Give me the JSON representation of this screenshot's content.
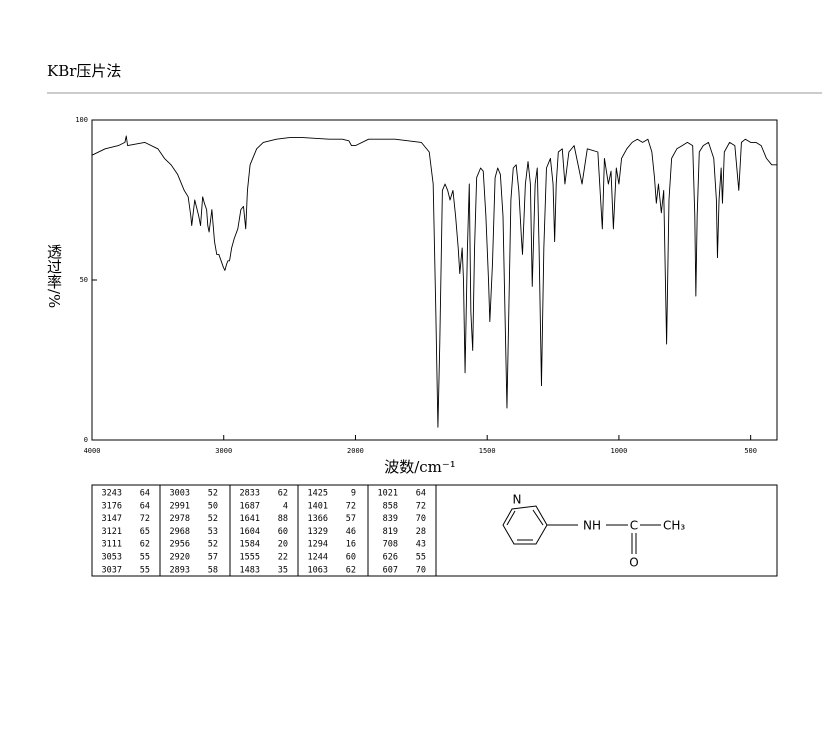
{
  "header": {
    "title": "KBr压片法"
  },
  "chart_data": {
    "type": "line",
    "x_label": "波数/cm⁻¹",
    "y_label": "透过率/%",
    "xlim": [
      4000,
      400
    ],
    "xticks": [
      4000,
      3000,
      2000,
      1500,
      1000,
      500
    ],
    "ylim": [
      0,
      100
    ],
    "yticks": [
      0,
      50,
      100
    ],
    "color": "#000000",
    "x": [
      4000,
      3900,
      3800,
      3750,
      3740,
      3730,
      3600,
      3500,
      3450,
      3400,
      3350,
      3300,
      3270,
      3250,
      3243,
      3220,
      3190,
      3176,
      3160,
      3147,
      3130,
      3121,
      3111,
      3090,
      3070,
      3053,
      3037,
      3020,
      3003,
      2991,
      2978,
      2968,
      2956,
      2940,
      2920,
      2893,
      2870,
      2850,
      2833,
      2820,
      2800,
      2750,
      2700,
      2600,
      2500,
      2400,
      2200,
      2100,
      2050,
      2030,
      2000,
      1950,
      1850,
      1800,
      1750,
      1720,
      1705,
      1695,
      1687,
      1680,
      1670,
      1660,
      1650,
      1641,
      1630,
      1620,
      1610,
      1604,
      1595,
      1590,
      1584,
      1575,
      1568,
      1562,
      1555,
      1548,
      1540,
      1525,
      1515,
      1505,
      1495,
      1490,
      1480,
      1470,
      1460,
      1450,
      1440,
      1430,
      1425,
      1418,
      1410,
      1401,
      1390,
      1380,
      1370,
      1366,
      1355,
      1345,
      1336,
      1329,
      1318,
      1310,
      1303,
      1294,
      1285,
      1275,
      1260,
      1250,
      1244,
      1238,
      1230,
      1215,
      1205,
      1190,
      1170,
      1140,
      1120,
      1080,
      1063,
      1055,
      1040,
      1030,
      1021,
      1010,
      1000,
      990,
      970,
      950,
      930,
      910,
      890,
      875,
      865,
      858,
      850,
      839,
      830,
      819,
      810,
      800,
      780,
      760,
      740,
      720,
      712,
      708,
      703,
      695,
      680,
      660,
      640,
      630,
      626,
      620,
      612,
      607,
      600,
      580,
      560,
      545,
      535,
      520,
      500,
      480,
      460,
      440,
      420,
      400
    ],
    "values": [
      89,
      91,
      92,
      93,
      95,
      92,
      93,
      91,
      88,
      86,
      83,
      78,
      76,
      70,
      67,
      75,
      70,
      67,
      76,
      74,
      72,
      67,
      65,
      72,
      62,
      58,
      58,
      56,
      54,
      53,
      55,
      56,
      56,
      60,
      63,
      66,
      72,
      73,
      66,
      78,
      86,
      91,
      93,
      94,
      94.5,
      94.5,
      94,
      94,
      93.5,
      92,
      92,
      94,
      94,
      93.5,
      93,
      90,
      80,
      40,
      4,
      30,
      78,
      80,
      78,
      75,
      78,
      70,
      60,
      52,
      60,
      50,
      21,
      60,
      80,
      40,
      28,
      60,
      82,
      85,
      84,
      70,
      50,
      37,
      55,
      82,
      85,
      83,
      70,
      30,
      10,
      40,
      75,
      85,
      86,
      78,
      63,
      58,
      80,
      87,
      80,
      48,
      80,
      85,
      60,
      17,
      60,
      85,
      88,
      80,
      62,
      80,
      90,
      91,
      80,
      90,
      92,
      80,
      91,
      90,
      66,
      88,
      80,
      84,
      66,
      85,
      80,
      88,
      91,
      93,
      94,
      93,
      94,
      90,
      82,
      74,
      80,
      71,
      78,
      30,
      75,
      88,
      91,
      92,
      93,
      92,
      70,
      45,
      70,
      90,
      92,
      93,
      88,
      75,
      57,
      75,
      85,
      74,
      90,
      93,
      92,
      78,
      93,
      94,
      93,
      93,
      92,
      88,
      86,
      86
    ]
  },
  "peak_table": {
    "columns": [
      [
        [
          3243,
          64
        ],
        [
          3176,
          64
        ],
        [
          3147,
          72
        ],
        [
          3121,
          65
        ],
        [
          3111,
          62
        ],
        [
          3053,
          55
        ],
        [
          3037,
          55
        ]
      ],
      [
        [
          3003,
          52
        ],
        [
          2991,
          50
        ],
        [
          2978,
          52
        ],
        [
          2968,
          53
        ],
        [
          2956,
          52
        ],
        [
          2920,
          57
        ],
        [
          2893,
          58
        ]
      ],
      [
        [
          2833,
          62
        ],
        [
          1687,
          4
        ],
        [
          1641,
          88
        ],
        [
          1604,
          60
        ],
        [
          1584,
          20
        ],
        [
          1555,
          22
        ],
        [
          1483,
          35
        ]
      ],
      [
        [
          1425,
          9
        ],
        [
          1401,
          72
        ],
        [
          1366,
          57
        ],
        [
          1329,
          46
        ],
        [
          1294,
          16
        ],
        [
          1244,
          60
        ],
        [
          1063,
          62
        ]
      ],
      [
        [
          1021,
          64
        ],
        [
          858,
          72
        ],
        [
          839,
          70
        ],
        [
          819,
          28
        ],
        [
          708,
          43
        ],
        [
          626,
          55
        ],
        [
          607,
          70
        ]
      ]
    ]
  },
  "structure": {
    "ring_n": "N",
    "nh": "NH",
    "c": "C",
    "ch3": "CH₃",
    "o": "O"
  }
}
